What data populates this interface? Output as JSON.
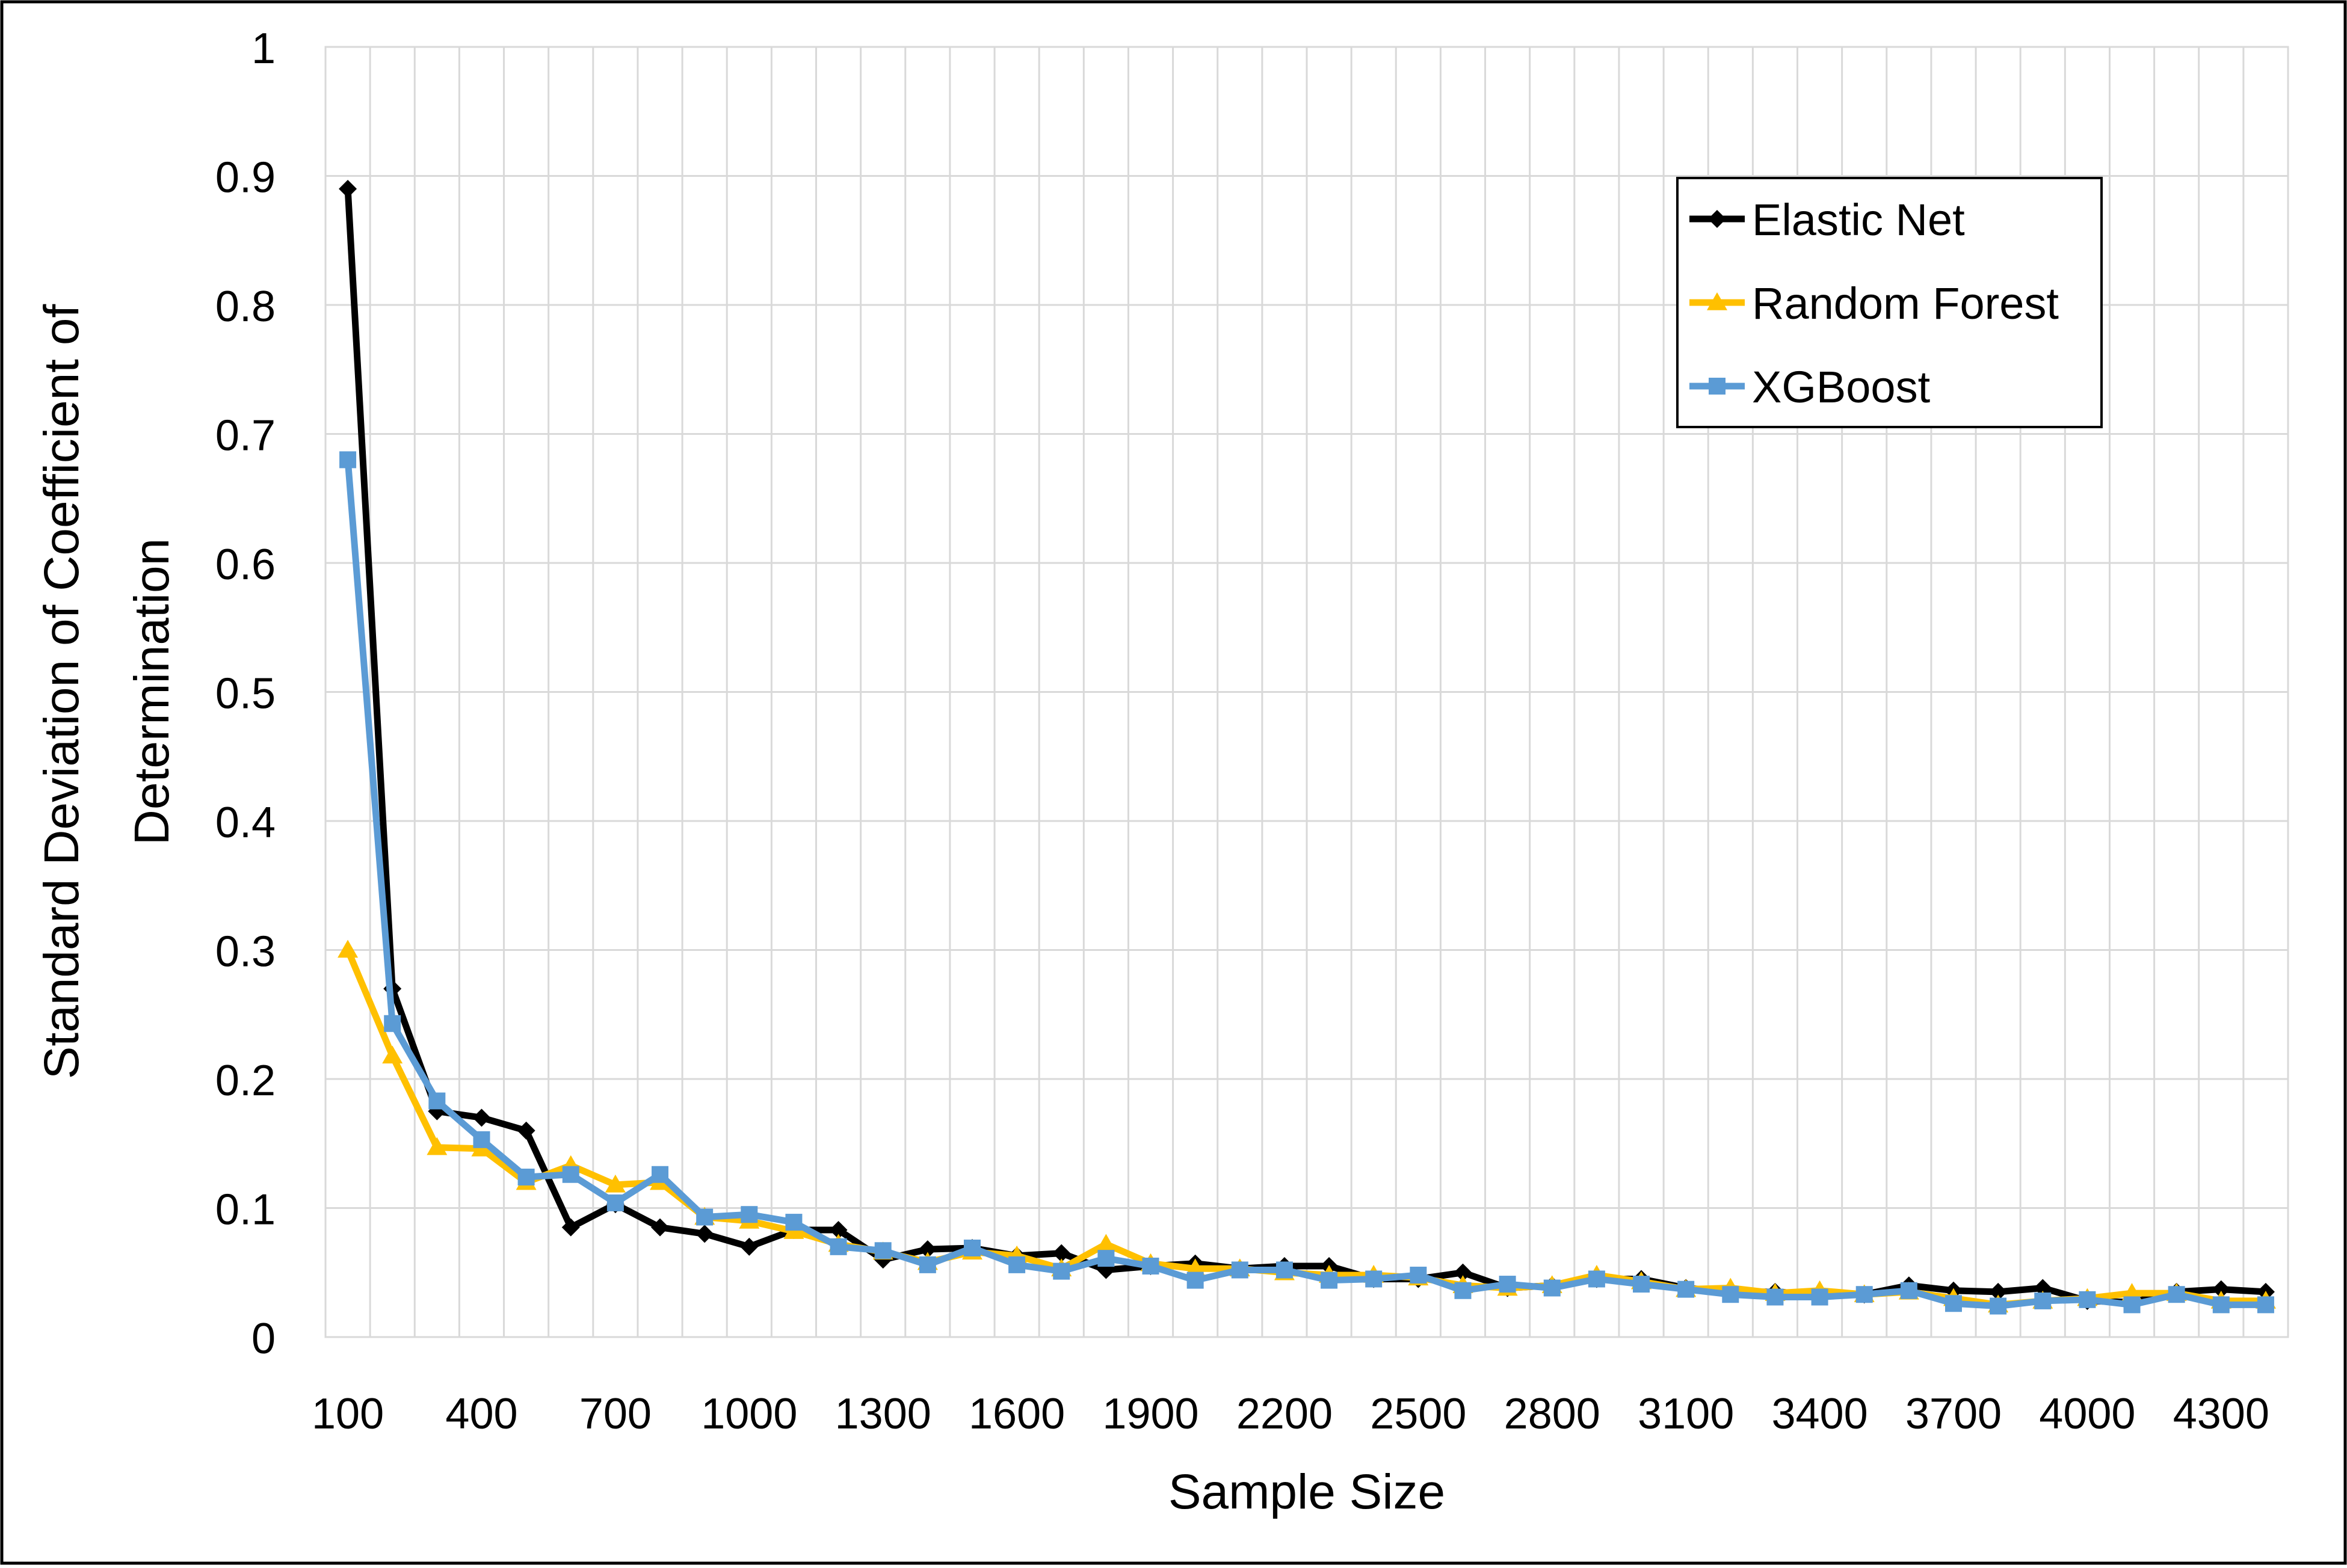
{
  "chart_data": {
    "type": "line",
    "title": "",
    "xlabel": "Sample Size",
    "ylabel": "Standard Deviation of Coefficient of Determination",
    "xlim": [
      50,
      4450
    ],
    "ylim": [
      0,
      1
    ],
    "x_ticks": [
      "100",
      "400",
      "700",
      "1000",
      "1300",
      "1600",
      "1900",
      "2200",
      "2500",
      "2800",
      "3100",
      "3400",
      "3700",
      "4000",
      "4300"
    ],
    "y_ticks": [
      "0",
      "0.1",
      "0.2",
      "0.3",
      "0.4",
      "0.5",
      "0.6",
      "0.7",
      "0.8",
      "0.9",
      "1"
    ],
    "grid": true,
    "legend_position": "top-right",
    "x": [
      100,
      200,
      300,
      400,
      500,
      600,
      700,
      800,
      900,
      1000,
      1100,
      1200,
      1300,
      1400,
      1500,
      1600,
      1700,
      1800,
      1900,
      2000,
      2100,
      2200,
      2300,
      2400,
      2500,
      2600,
      2700,
      2800,
      2900,
      3000,
      3100,
      3200,
      3300,
      3400,
      3500,
      3600,
      3700,
      3800,
      3900,
      4000,
      4100,
      4200,
      4300,
      4400
    ],
    "series": [
      {
        "name": "Elastic Net",
        "color": "#000000",
        "marker": "diamond",
        "values": [
          0.89,
          0.27,
          0.175,
          0.17,
          0.16,
          0.085,
          0.103,
          0.085,
          0.08,
          0.07,
          0.083,
          0.083,
          0.06,
          0.068,
          0.069,
          0.063,
          0.065,
          0.052,
          0.055,
          0.057,
          0.053,
          0.055,
          0.055,
          0.045,
          0.045,
          0.05,
          0.038,
          0.04,
          0.045,
          0.045,
          0.038,
          0.035,
          0.035,
          0.033,
          0.033,
          0.04,
          0.036,
          0.035,
          0.038,
          0.028,
          0.027,
          0.035,
          0.037,
          0.035
        ]
      },
      {
        "name": "Random Forest",
        "color": "#FFC000",
        "marker": "triangle",
        "values": [
          0.3,
          0.218,
          0.147,
          0.146,
          0.12,
          0.133,
          0.118,
          0.12,
          0.093,
          0.09,
          0.082,
          0.072,
          0.066,
          0.058,
          0.066,
          0.063,
          0.053,
          0.072,
          0.057,
          0.053,
          0.053,
          0.05,
          0.048,
          0.048,
          0.046,
          0.04,
          0.038,
          0.04,
          0.048,
          0.043,
          0.037,
          0.038,
          0.034,
          0.036,
          0.033,
          0.035,
          0.03,
          0.025,
          0.028,
          0.03,
          0.034,
          0.034,
          0.028,
          0.028
        ]
      },
      {
        "name": "XGBoost",
        "color": "#5B9BD5",
        "marker": "square",
        "values": [
          0.68,
          0.243,
          0.183,
          0.153,
          0.124,
          0.126,
          0.104,
          0.126,
          0.093,
          0.095,
          0.089,
          0.07,
          0.067,
          0.056,
          0.069,
          0.056,
          0.051,
          0.061,
          0.055,
          0.044,
          0.052,
          0.052,
          0.044,
          0.045,
          0.048,
          0.036,
          0.041,
          0.038,
          0.045,
          0.041,
          0.037,
          0.033,
          0.031,
          0.031,
          0.033,
          0.036,
          0.026,
          0.024,
          0.028,
          0.029,
          0.025,
          0.033,
          0.025,
          0.025
        ]
      }
    ]
  }
}
